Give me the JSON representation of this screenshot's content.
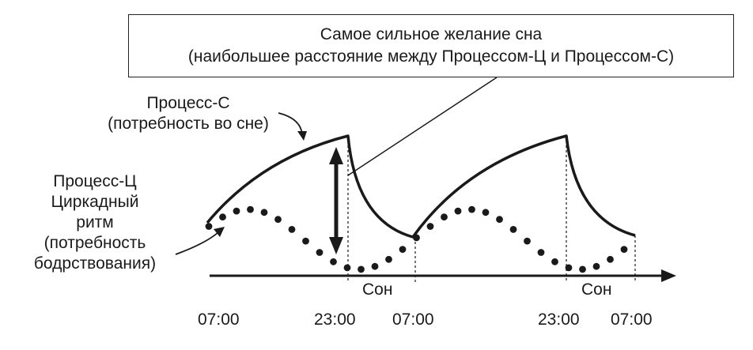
{
  "callout": {
    "line1": "Самое сильное желание сна",
    "line2": "(наибольшее расстояние между Процессом-Ц и Процессом-С)"
  },
  "process_s": {
    "line1": "Процесс-С",
    "line2": "(потребность во сне)"
  },
  "process_c": {
    "line1": "Процесс-Ц",
    "line2": "Циркадный",
    "line3": "ритм",
    "line4": "(потребность",
    "line5": "бодрствования)"
  },
  "sleep_labels": [
    "Сон",
    "Сон"
  ],
  "time_labels": [
    "07:00",
    "23:00",
    "07:00",
    "23:00",
    "07:00"
  ],
  "colors": {
    "ink": "#1a1a1a"
  }
}
